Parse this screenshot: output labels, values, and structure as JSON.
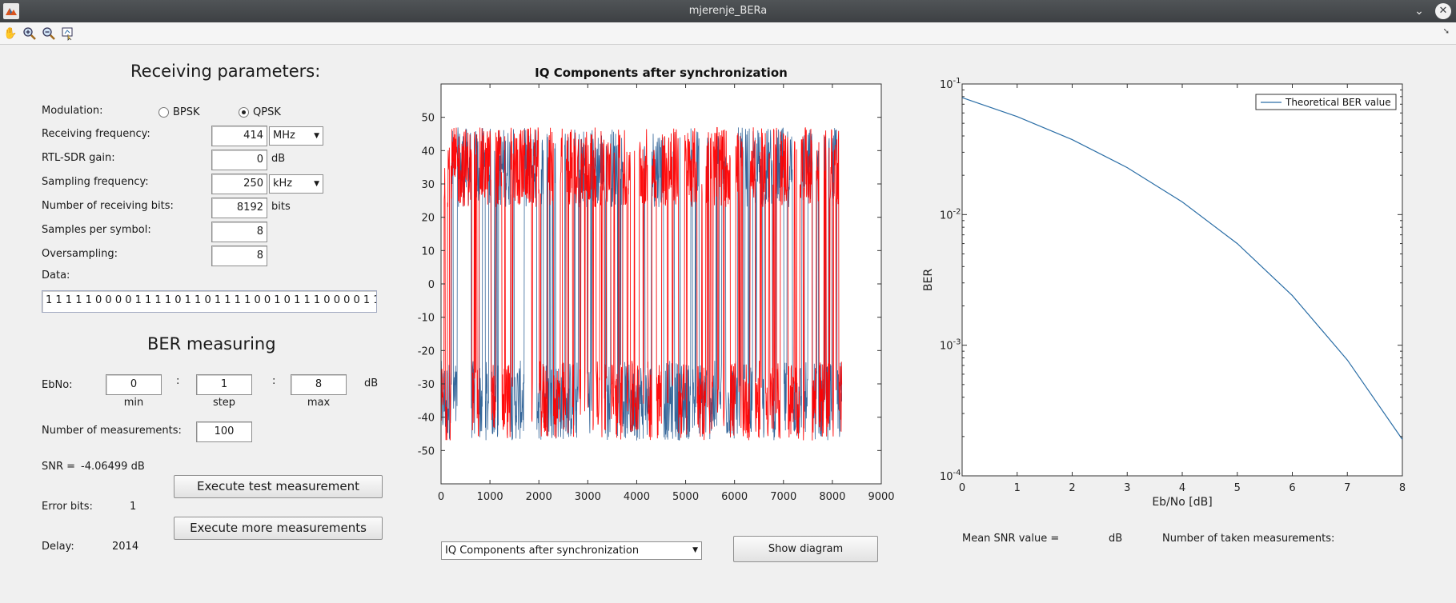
{
  "window": {
    "title": "mjerenje_BERa"
  },
  "toolbar": {
    "icons": [
      "pan-hand-icon",
      "zoom-in-icon",
      "zoom-out-icon",
      "data-cursor-icon"
    ],
    "undock_icon": "undock-arrow-icon"
  },
  "receiving": {
    "heading": "Receiving parameters:",
    "modulation_label": "Modulation:",
    "options": {
      "bpsk": "BPSK",
      "qpsk": "QPSK"
    },
    "selected_modulation": "QPSK",
    "freq_label": "Receiving frequency:",
    "freq_value": "414",
    "freq_unit": "MHz",
    "gain_label": "RTL-SDR gain:",
    "gain_value": "0",
    "gain_unit": "dB",
    "fs_label": "Sampling frequency:",
    "fs_value": "250",
    "fs_unit": "kHz",
    "bits_label": "Number of receiving bits:",
    "bits_value": "8192",
    "bits_unit": "bits",
    "sps_label": "Samples per symbol:",
    "sps_value": "8",
    "os_label": "Oversampling:",
    "os_value": "8",
    "data_label": "Data:",
    "data_value": "1 1 1 1 1 0 0 0 0 1 1 1 1 0 1 1 0 1 1 1 1 0 0 1 0 1 1 1 0 0 0 0 1 1 1"
  },
  "ber": {
    "heading": "BER measuring",
    "ebno_label": "EbNo:",
    "min_value": "0",
    "step_value": "1",
    "max_value": "8",
    "colon": ":",
    "unit": "dB",
    "min_label": "min",
    "step_label": "step",
    "max_label": "max",
    "nmeas_label": "Number of measurements:",
    "nmeas_value": "100",
    "snr_label": "SNR =",
    "snr_value": "-4.06499 dB",
    "error_label": "Error bits:",
    "error_value": "1",
    "delay_label": "Delay:",
    "delay_value": "2014",
    "test_button": "Execute test measurement",
    "more_button": "Execute more measurements"
  },
  "diagram": {
    "select_value": "IQ Components after synchronization",
    "show_button": "Show diagram"
  },
  "results": {
    "mean_snr_label": "Mean SNR value =",
    "mean_snr_unit": "dB",
    "taken_label": "Number of taken measurements:"
  },
  "chart_data": [
    {
      "type": "line",
      "title": "IQ Components after synchronization",
      "xlabel": "",
      "ylabel": "",
      "xlim": [
        0,
        9000
      ],
      "ylim": [
        -60,
        60
      ],
      "x_ticks": [
        0,
        1000,
        2000,
        3000,
        4000,
        5000,
        6000,
        7000,
        8000,
        9000
      ],
      "y_ticks": [
        -50,
        -40,
        -30,
        -20,
        -10,
        0,
        10,
        20,
        30,
        40,
        50
      ],
      "series": [
        {
          "values_range": [
            0,
            8192
          ],
          "levels": [
            -35,
            35
          ],
          "noise_amplitude": 12,
          "color": "#2b5f95"
        },
        {
          "values_range": [
            0,
            8192
          ],
          "levels": [
            -35,
            35
          ],
          "noise_amplitude": 12,
          "color": "#ff0000"
        }
      ],
      "grid": false
    },
    {
      "type": "line",
      "title": "",
      "xlabel": "Eb/No [dB]",
      "ylabel": "BER",
      "xlim": [
        0,
        8
      ],
      "ylim": [
        0.0001,
        0.1
      ],
      "yscale": "log",
      "x_ticks": [
        "0",
        "1",
        "2",
        "3",
        "4",
        "5",
        "6",
        "7",
        "8"
      ],
      "y_ticks": [
        {
          "base": "10",
          "exp": "-4",
          "value": 0.0001
        },
        {
          "base": "10",
          "exp": "-3",
          "value": 0.001
        },
        {
          "base": "10",
          "exp": "-2",
          "value": 0.01
        },
        {
          "base": "10",
          "exp": "-1",
          "value": 0.1
        }
      ],
      "x": [
        0,
        1,
        2,
        3,
        4,
        5,
        6,
        7,
        8
      ],
      "series": [
        {
          "name": "Theoretical BER value",
          "color": "#2b6ea6",
          "values": [
            0.0786,
            0.0563,
            0.0375,
            0.0229,
            0.0125,
            0.006,
            0.0024,
            0.00077,
            0.00019
          ]
        }
      ],
      "legend": "top-right",
      "grid": false
    }
  ]
}
